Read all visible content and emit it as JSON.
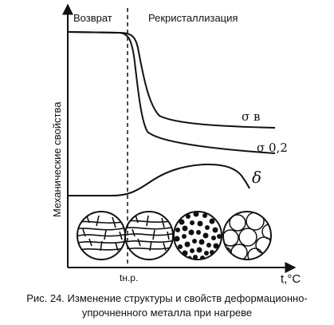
{
  "diagram": {
    "y_axis_label": "Механические свойства",
    "x_axis_unit": "t,°C",
    "stage_recovery": "Возврат",
    "stage_recrystallization": "Рекристаллизация",
    "threshold_label": "tн.р.",
    "curves": [
      {
        "id": "sigma-b",
        "label": "σ в"
      },
      {
        "id": "sigma-02",
        "label": "σ 0,2"
      },
      {
        "id": "delta",
        "label": "δ"
      }
    ],
    "microstructures": [
      {
        "id": "deformed-grains"
      },
      {
        "id": "deformed-grains-2"
      },
      {
        "id": "fine-new-grains"
      },
      {
        "id": "recrystallized-grains"
      }
    ]
  },
  "caption": {
    "line1": "Рис. 24. Изменение структуры и свойств деформационно-",
    "line2": "упрочненного металла при нагреве"
  }
}
